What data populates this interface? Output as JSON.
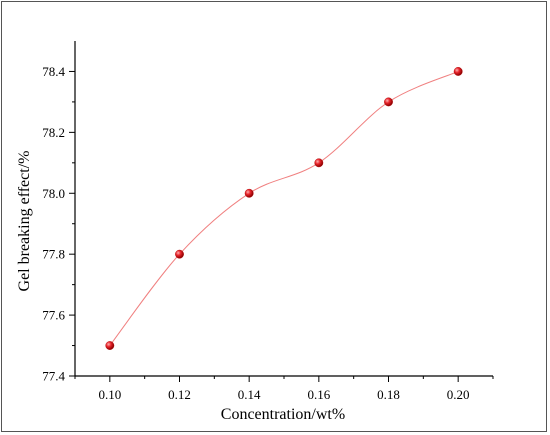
{
  "chart_data": {
    "type": "line",
    "title": "",
    "xlabel": "Concentration/wt%",
    "ylabel": "Gel breaking effect/%",
    "xlim": [
      0.09,
      0.21
    ],
    "ylim": [
      77.4,
      78.5
    ],
    "x_ticks": [
      0.1,
      0.12,
      0.14,
      0.16,
      0.18,
      0.2
    ],
    "x_tick_labels": [
      "0.10",
      "0.12",
      "0.14",
      "0.16",
      "0.18",
      "0.20"
    ],
    "y_ticks": [
      77.4,
      77.6,
      77.8,
      78.0,
      78.2,
      78.4
    ],
    "y_tick_labels": [
      "77.4",
      "77.6",
      "77.8",
      "78.0",
      "78.2",
      "78.4"
    ],
    "grid": false,
    "legend": "none",
    "series": [
      {
        "x": [
          0.1,
          0.12,
          0.14,
          0.16,
          0.18,
          0.2
        ],
        "values": [
          77.5,
          77.8,
          78.0,
          78.1,
          78.3,
          78.4
        ],
        "color": "#e8232a",
        "line_color": "#f08080",
        "smooth": true
      }
    ]
  }
}
